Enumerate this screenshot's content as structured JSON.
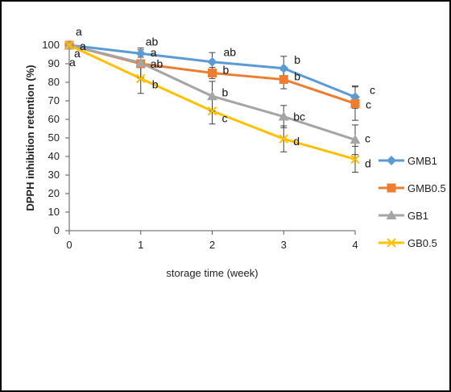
{
  "chart_data": {
    "type": "line",
    "title": "",
    "xlabel": "storage time (week)",
    "ylabel": "DPPH inhibition retention (%)",
    "x": [
      0,
      1,
      2,
      3,
      4
    ],
    "xlim": [
      0,
      4
    ],
    "ylim": [
      0,
      100
    ],
    "yticks": [
      0,
      10,
      20,
      30,
      40,
      50,
      60,
      70,
      80,
      90,
      100
    ],
    "xticks": [
      0,
      1,
      2,
      3,
      4
    ],
    "grid": false,
    "legend_position": "right",
    "series": [
      {
        "name": "GMB1",
        "color": "#5B9BD5",
        "marker": "diamond",
        "values": [
          100,
          95.5,
          91,
          87.5,
          72
        ],
        "error": [
          0,
          2,
          5,
          6.5,
          6
        ],
        "labels": [
          "a",
          "ab",
          "ab",
          "b",
          "c"
        ]
      },
      {
        "name": "GMB0.5",
        "color": "#ED7D31",
        "marker": "square",
        "values": [
          100,
          90,
          85,
          81.5,
          68.5
        ],
        "error": [
          0,
          2,
          3,
          5,
          9
        ],
        "labels": [
          "a",
          "ab",
          "b",
          "b",
          "c"
        ]
      },
      {
        "name": "GB1",
        "color": "#A5A5A5",
        "marker": "triangle",
        "values": [
          100,
          90.5,
          72.5,
          61.5,
          49
        ],
        "error": [
          0,
          8,
          8,
          6,
          8
        ],
        "labels": [
          "a",
          "a",
          "b",
          "bc",
          "c"
        ]
      },
      {
        "name": "GB0.5",
        "color": "#FFC000",
        "marker": "x",
        "values": [
          100,
          82,
          64.5,
          49.5,
          38.5
        ],
        "error": [
          0,
          8,
          7,
          7,
          7
        ],
        "labels": [
          "a",
          "b",
          "c",
          "d",
          "d"
        ]
      }
    ]
  }
}
